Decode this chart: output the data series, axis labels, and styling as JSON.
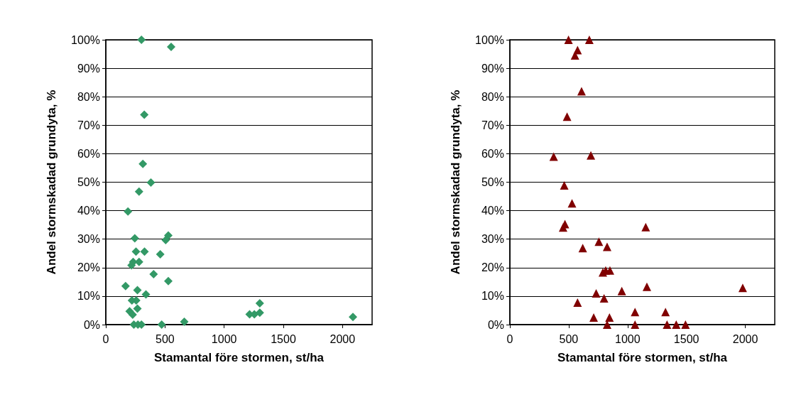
{
  "chart_data": [
    {
      "type": "scatter",
      "xlabel": "Stamantal före stormen, st/ha",
      "ylabel": "Andel stormskadad grundyta, %",
      "marker": "diamond",
      "grid": "y",
      "xlim": [
        0,
        2250
      ],
      "xticks": [
        0,
        500,
        1000,
        1500,
        2000
      ],
      "ylim": [
        0,
        100
      ],
      "yticks": [
        {
          "value": 0,
          "label": "0%"
        },
        {
          "value": 10,
          "label": "10%"
        },
        {
          "value": 20,
          "label": "20%"
        },
        {
          "value": 30,
          "label": "30%"
        },
        {
          "value": 40,
          "label": "40%"
        },
        {
          "value": 50,
          "label": "50%"
        },
        {
          "value": 60,
          "label": "60%"
        },
        {
          "value": 70,
          "label": "70%"
        },
        {
          "value": 80,
          "label": "80%"
        },
        {
          "value": 90,
          "label": "90%"
        },
        {
          "value": 100,
          "label": "100%"
        }
      ],
      "series": [
        {
          "color": "#339966",
          "x": [
            301,
            552,
            325,
            313,
            381,
            281,
            187,
            245,
            528,
            506,
            255,
            327,
            460,
            231,
            281,
            217,
            404,
            528,
            167,
            267,
            339,
            221,
            257,
            267,
            201,
            227,
            237,
            271,
            301,
            472,
            663,
            1301,
            1215,
            1255,
            1301,
            2088
          ],
          "values": [
            100,
            97.5,
            73.7,
            56.4,
            49.9,
            46.7,
            39.7,
            30.3,
            31.3,
            29.7,
            25.6,
            25.6,
            24.7,
            22.0,
            22.0,
            20.8,
            17.7,
            15.3,
            13.5,
            12.1,
            10.6,
            8.5,
            8.5,
            5.6,
            4.7,
            3.5,
            0,
            0,
            0,
            0,
            1.0,
            7.5,
            3.6,
            3.6,
            4.2,
            2.7
          ]
        }
      ]
    },
    {
      "type": "scatter",
      "xlabel": "Stamantal före stormen, st/ha",
      "ylabel": "Andel stormskadad grundyta, %",
      "marker": "triangle",
      "grid": "y",
      "xlim": [
        0,
        2250
      ],
      "xticks": [
        0,
        500,
        1000,
        1500,
        2000
      ],
      "ylim": [
        0,
        100
      ],
      "yticks": [
        {
          "value": 0,
          "label": "0%"
        },
        {
          "value": 10,
          "label": "10%"
        },
        {
          "value": 20,
          "label": "20%"
        },
        {
          "value": 30,
          "label": "30%"
        },
        {
          "value": 40,
          "label": "40%"
        },
        {
          "value": 50,
          "label": "50%"
        },
        {
          "value": 60,
          "label": "60%"
        },
        {
          "value": 70,
          "label": "70%"
        },
        {
          "value": 80,
          "label": "80%"
        },
        {
          "value": 90,
          "label": "90%"
        },
        {
          "value": 100,
          "label": "100%"
        }
      ],
      "series": [
        {
          "color": "#800000",
          "x": [
            498,
            675,
            575,
            553,
            609,
            486,
            372,
            688,
            462,
            528,
            468,
            452,
            1154,
            756,
            619,
            826,
            790,
            814,
            850,
            951,
            1164,
            1978,
            733,
            800,
            575,
            1063,
            1322,
            712,
            846,
            826,
            1063,
            1335,
            1413,
            1492
          ],
          "values": [
            100,
            100,
            96.4,
            94.5,
            81.9,
            73.0,
            59.0,
            59.4,
            48.9,
            42.6,
            35.3,
            34.1,
            34.2,
            29.1,
            26.9,
            27.3,
            18.3,
            19.0,
            19.0,
            11.8,
            13.3,
            12.9,
            11.0,
            9.2,
            7.7,
            4.4,
            4.4,
            2.5,
            2.5,
            0,
            0,
            0,
            0,
            0
          ]
        }
      ]
    }
  ]
}
